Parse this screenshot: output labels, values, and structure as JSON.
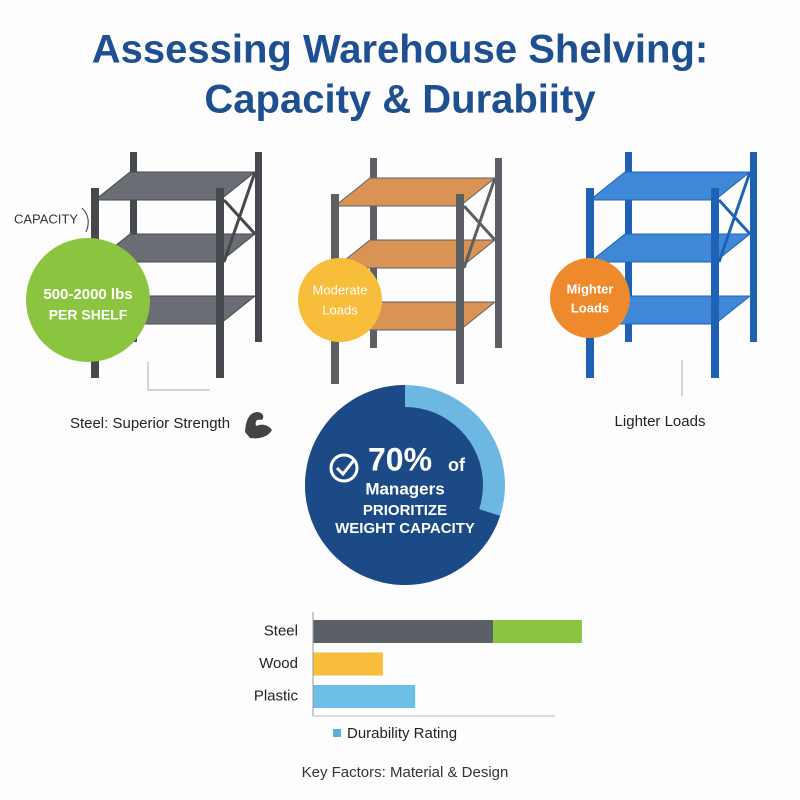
{
  "title": [
    "Assessing Warehouse Shelving:",
    "Capacity & Durabiity"
  ],
  "callouts": {
    "capacity": "CAPACITY",
    "steel_circle": [
      "500-2000 lbs",
      "PER SHELF"
    ],
    "wood_circle": [
      "Moderate",
      "Loads"
    ],
    "plastic_circle": [
      "Mighter",
      "Loads"
    ],
    "steel_label": "Steel: Superior Strength",
    "plastic_label": "Lighter Loads"
  },
  "chart_data": [
    {
      "type": "donut",
      "values": [
        70
      ],
      "value_labels": [
        "70%"
      ],
      "color": "#1b4a86",
      "rest_color": "#6db8e2",
      "texts": [
        "of",
        "Managers",
        "PRIORITIZE",
        "WEIGHT CAPACITY"
      ]
    },
    {
      "type": "hbar",
      "categories": [
        "Steel",
        "Wood",
        "Plastic"
      ],
      "xlim": [
        0,
        9
      ],
      "series": [
        {
          "name": "Durability Rating",
          "color": "#5aaedc",
          "colors": [
            "#5b5f66",
            "#f7bd3b",
            "#6cc0e8"
          ],
          "values": [
            6.7,
            2.6,
            3.8
          ]
        },
        {
          "color": "#8bc540",
          "values": [
            3.3,
            null,
            null
          ]
        }
      ]
    }
  ],
  "footer": "Key Factors: Material & Design"
}
